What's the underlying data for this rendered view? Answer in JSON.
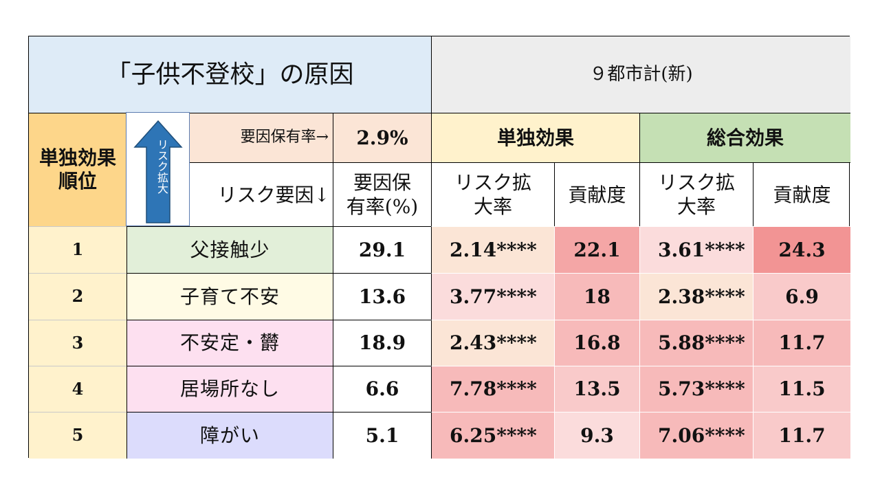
{
  "title": "「子供不登校」の原因",
  "city_header": "９都市計(新)",
  "rank_header": "単独効果\n順位",
  "arrow_label": "リスク拡大",
  "prevalence_label": "要因保有率→",
  "prevalence_value": "2.9%",
  "factor_header": "リスク要因↓",
  "prevalence_col_header": "要因保\n有率(%)",
  "groups": {
    "single": "単独効果",
    "total": "総合効果"
  },
  "sub_headers": {
    "risk_ratio": "リスク拡\n大率",
    "contribution": "貢献度"
  },
  "colors": {
    "title_bg": "#deebf7",
    "city_bg": "#ededed",
    "rank_bg": "#fdd68a",
    "single_bg": "#fff2cc",
    "total_bg": "#c5e0b4"
  },
  "rows": [
    {
      "rank": "1",
      "factor": "父接触少",
      "prevalence": "29.1",
      "single_rr": "2.14****",
      "single_contrib": "22.1",
      "total_rr": "3.61****",
      "total_contrib": "24.3",
      "factor_bg": "#e2efd9",
      "c": [
        "#fbe5d6",
        "#f4a6a6",
        "#fbdcdc",
        "#f29494"
      ]
    },
    {
      "rank": "2",
      "factor": "子育て不安",
      "prevalence": "13.6",
      "single_rr": "3.77****",
      "single_contrib": "18",
      "total_rr": "2.38****",
      "total_contrib": "6.9",
      "factor_bg": "#fffbe5",
      "c": [
        "#fbdcdc",
        "#f7baba",
        "#fbe5d6",
        "#f9caca"
      ]
    },
    {
      "rank": "3",
      "factor": "不安定・欝",
      "prevalence": "18.9",
      "single_rr": "2.43****",
      "single_contrib": "16.8",
      "total_rr": "5.88****",
      "total_contrib": "11.7",
      "factor_bg": "#fde0f0",
      "c": [
        "#fbe5d6",
        "#f7baba",
        "#f7baba",
        "#f7baba"
      ]
    },
    {
      "rank": "4",
      "factor": "居場所なし",
      "prevalence": "6.6",
      "single_rr": "7.78****",
      "single_contrib": "13.5",
      "total_rr": "5.73****",
      "total_contrib": "11.5",
      "factor_bg": "#fde0f0",
      "c": [
        "#f7baba",
        "#f9caca",
        "#f7baba",
        "#f9caca"
      ]
    },
    {
      "rank": "5",
      "factor": "障がい",
      "prevalence": "5.1",
      "single_rr": "6.25****",
      "single_contrib": "9.3",
      "total_rr": "7.06****",
      "total_contrib": "11.7",
      "factor_bg": "#dcdcfc",
      "c": [
        "#f7baba",
        "#fbdcdc",
        "#f7baba",
        "#f9caca"
      ]
    }
  ]
}
